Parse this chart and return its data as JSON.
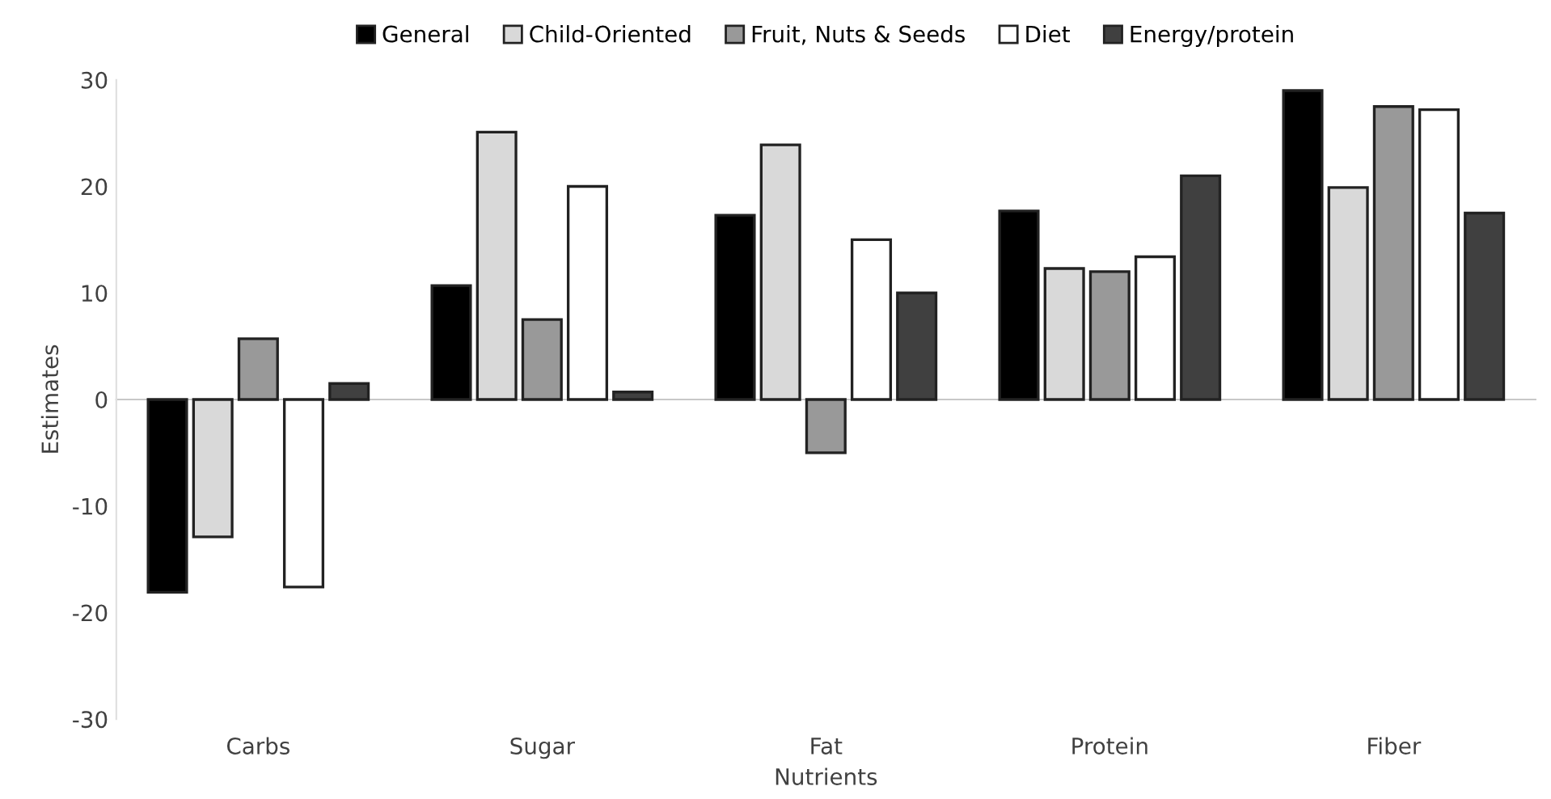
{
  "chart_data": {
    "type": "bar",
    "xlabel": "Nutrients",
    "ylabel": "Estimates",
    "categories": [
      "Carbs",
      "Sugar",
      "Fat",
      "Protein",
      "Fiber"
    ],
    "series": [
      {
        "name": "General",
        "color": "#000000",
        "values": [
          -18.1,
          10.7,
          17.3,
          17.7,
          29.0
        ]
      },
      {
        "name": "Child-Oriented",
        "color": "#d9d9d9",
        "values": [
          -12.9,
          25.1,
          23.9,
          12.3,
          19.9
        ]
      },
      {
        "name": "Fruit, Nuts & Seeds",
        "color": "#999999",
        "values": [
          5.7,
          7.5,
          -5.0,
          12.0,
          27.5
        ]
      },
      {
        "name": "Diet",
        "color": "#ffffff",
        "values": [
          -17.6,
          20.0,
          15.0,
          13.4,
          27.2
        ]
      },
      {
        "name": "Energy/protein",
        "color": "#404040",
        "values": [
          1.5,
          0.7,
          10.0,
          21.0,
          17.5
        ]
      }
    ],
    "ylim": [
      -30,
      30
    ],
    "yticks": [
      -30,
      -20,
      -10,
      0,
      10,
      20,
      30
    ],
    "legend": "top"
  }
}
